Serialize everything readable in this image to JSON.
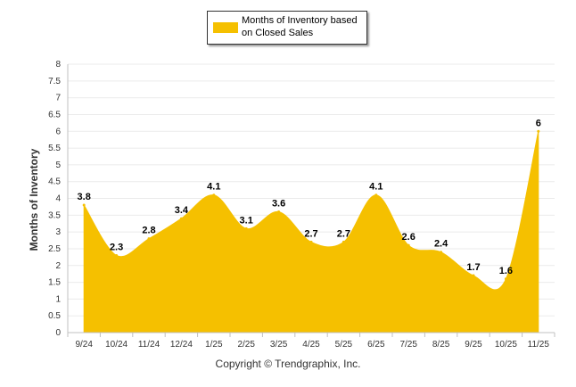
{
  "chart_data": {
    "type": "area",
    "categories": [
      "9/24",
      "10/24",
      "11/24",
      "12/24",
      "1/25",
      "2/25",
      "3/25",
      "4/25",
      "5/25",
      "6/25",
      "7/25",
      "8/25",
      "9/25",
      "10/25",
      "11/25"
    ],
    "series": [
      {
        "name": "Months of Inventory based on Closed Sales",
        "values": [
          3.8,
          2.3,
          2.8,
          3.4,
          4.1,
          3.1,
          3.6,
          2.7,
          2.7,
          4.1,
          2.6,
          2.4,
          1.7,
          1.6,
          6
        ],
        "color": "#f5c000"
      }
    ],
    "data_labels": [
      "3.8",
      "2.3",
      "2.8",
      "3.4",
      "4.1",
      "3.1",
      "3.6",
      "2.7",
      "2.7",
      "4.1",
      "2.6",
      "2.4",
      "1.7",
      "1.6",
      "6"
    ],
    "ylabel": "Months of Inventory",
    "xlabel": "",
    "ylim": [
      0,
      8
    ],
    "y_ticks": [
      "0",
      "0.5",
      "1",
      "1.5",
      "2",
      "2.5",
      "3",
      "3.5",
      "4",
      "4.5",
      "5",
      "5.5",
      "6",
      "6.5",
      "7",
      "7.5",
      "8"
    ],
    "grid": true,
    "smooth": true,
    "legend_position": "top-center"
  },
  "legend": {
    "label_line1": "Months of Inventory based",
    "label_line2": "on Closed Sales"
  },
  "footer": {
    "copyright": "Copyright © Trendgraphix, Inc."
  }
}
